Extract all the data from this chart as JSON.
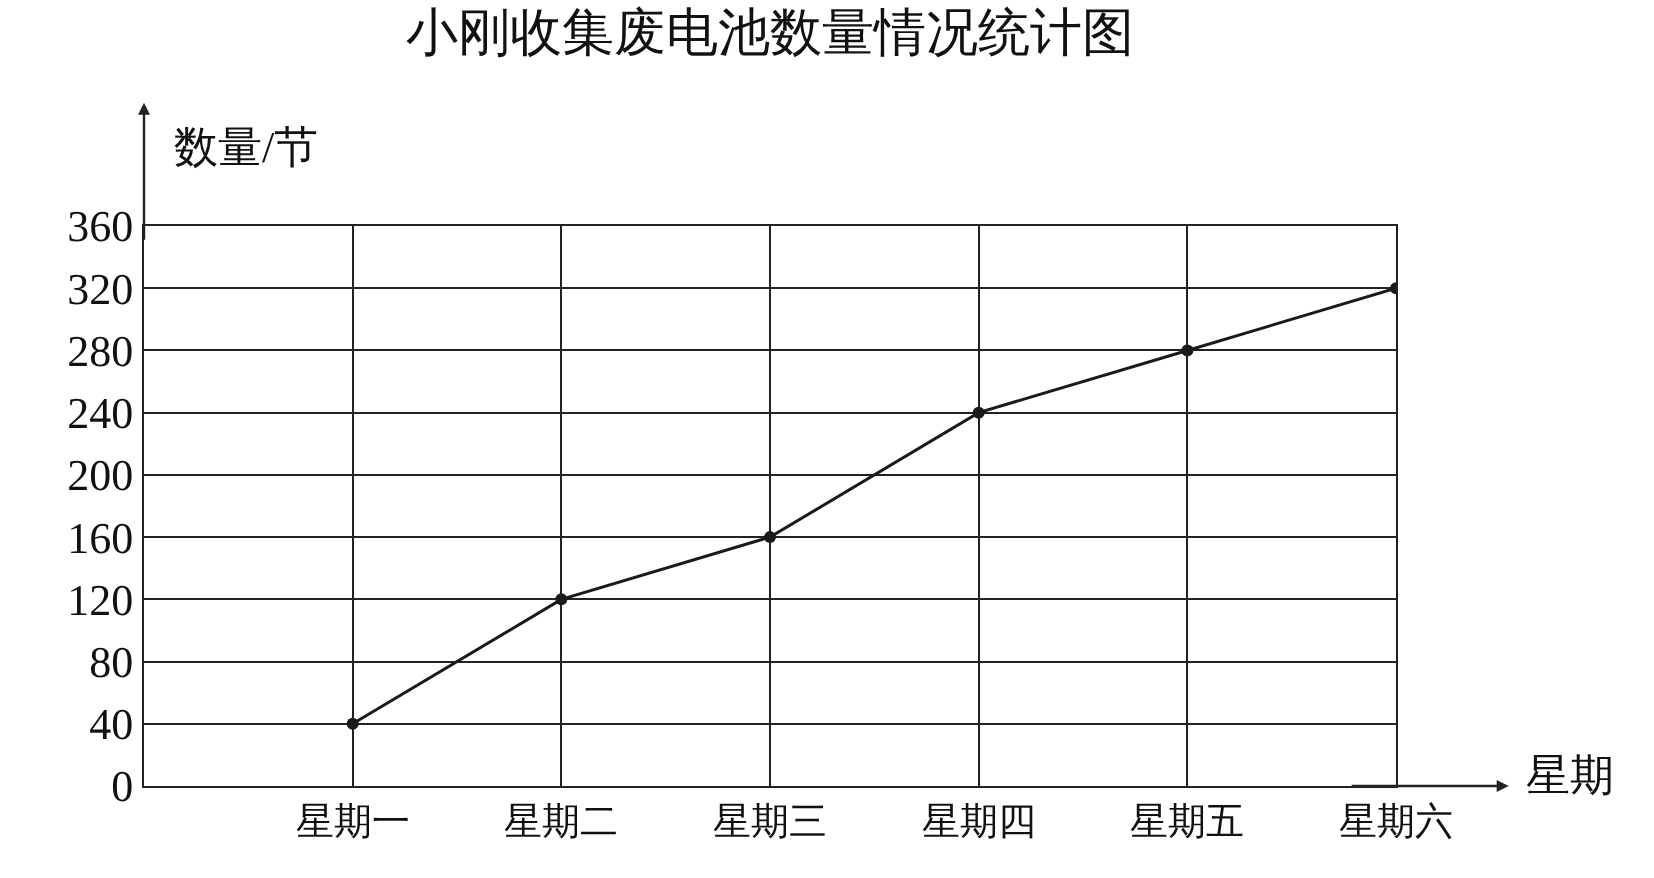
{
  "chart_data": {
    "type": "line",
    "title": "小刚收集废电池数量情况统计图",
    "xlabel": "星期",
    "ylabel": "数量/节",
    "categories": [
      "星期一",
      "星期二",
      "星期三",
      "星期四",
      "星期五",
      "星期六"
    ],
    "series": [
      {
        "color": "#1a1a1a",
        "values": [
          40,
          120,
          160,
          240,
          280,
          320
        ]
      }
    ],
    "ylim": [
      0,
      360
    ],
    "yticks": [
      0,
      40,
      80,
      120,
      160,
      200,
      240,
      280,
      320,
      360
    ],
    "grid": true,
    "marker": "circle",
    "line_style": "solid"
  }
}
